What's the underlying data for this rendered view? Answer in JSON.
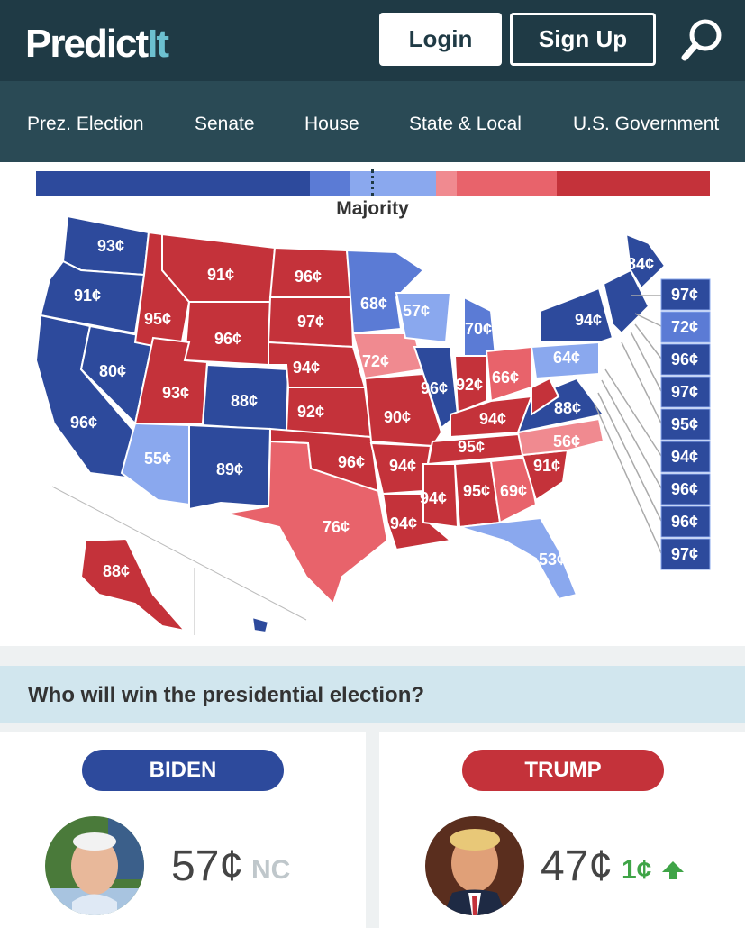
{
  "header": {
    "logo_main": "Predict",
    "logo_it": "It",
    "login_label": "Login",
    "signup_label": "Sign Up"
  },
  "nav": {
    "items": [
      "Prez. Election",
      "Senate",
      "House",
      "State & Local",
      "U.S. Government"
    ]
  },
  "majority": {
    "label": "Majority"
  },
  "map": {
    "colors": {
      "solid_dem": "#2d4a9c",
      "likely_dem": "#5b7bd5",
      "lean_dem": "#8aa8ee",
      "lean_rep": "#f08a90",
      "likely_rep": "#e8636b",
      "solid_rep": "#c4323a"
    },
    "states": {
      "wa": "93¢",
      "or": "91¢",
      "ca": "96¢",
      "nv": "80¢",
      "id": "95¢",
      "mt": "91¢",
      "wy": "96¢",
      "ut": "93¢",
      "az": "55¢",
      "co": "88¢",
      "nm": "89¢",
      "nd": "96¢",
      "sd": "97¢",
      "ne": "94¢",
      "ks": "92¢",
      "ok": "96¢",
      "tx": "76¢",
      "mn": "68¢",
      "ia": "72¢",
      "mo": "90¢",
      "ar": "94¢",
      "la": "94¢",
      "wi": "57¢",
      "il": "96¢",
      "mi": "70¢",
      "in": "92¢",
      "oh": "66¢",
      "ky": "94¢",
      "tn": "95¢",
      "ms": "94¢",
      "al": "95¢",
      "ga": "69¢",
      "fl": "53¢",
      "sc": "91¢",
      "nc": "56¢",
      "va": "88¢",
      "pa": "64¢",
      "ny": "94¢",
      "me": "84¢",
      "ak": "88¢"
    },
    "small_states": [
      "97¢",
      "72¢",
      "96¢",
      "97¢",
      "95¢",
      "94¢",
      "96¢",
      "96¢",
      "97¢"
    ]
  },
  "question": {
    "text": "Who will win the presidential election?"
  },
  "candidates": [
    {
      "name": "BIDEN",
      "price": "57¢",
      "change": "NC",
      "color": "#2d4a9c"
    },
    {
      "name": "TRUMP",
      "price": "47¢",
      "change": "1¢",
      "color": "#c4323a"
    }
  ]
}
